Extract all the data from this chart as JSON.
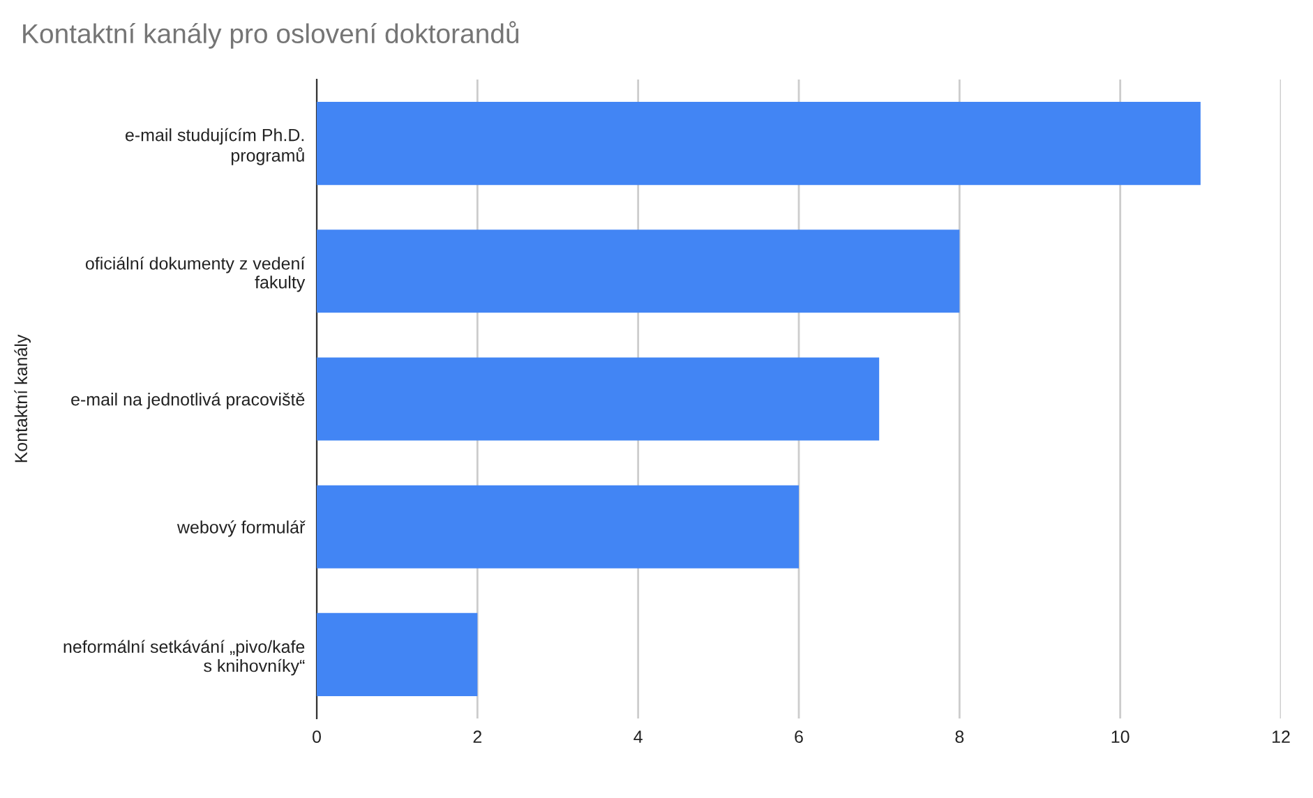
{
  "chart_data": {
    "type": "bar",
    "orientation": "horizontal",
    "title": "Kontaktní kanály pro oslovení doktorandů",
    "ylabel": "Kontaktní kanály",
    "categories": [
      "e-mail studujícím Ph.D.\nprogramů",
      "oficiální dokumenty z vedení\nfakulty",
      "e-mail na jednotlivá pracoviště",
      "webový formulář",
      "neformální setkávání „pivo/kafe\ns knihovníky“"
    ],
    "values": [
      11,
      8,
      7,
      6,
      2
    ],
    "color": "#4285f4",
    "xlim": [
      0,
      12
    ],
    "xticks": [
      0,
      2,
      4,
      6,
      8,
      10,
      12
    ],
    "grid": "x"
  }
}
